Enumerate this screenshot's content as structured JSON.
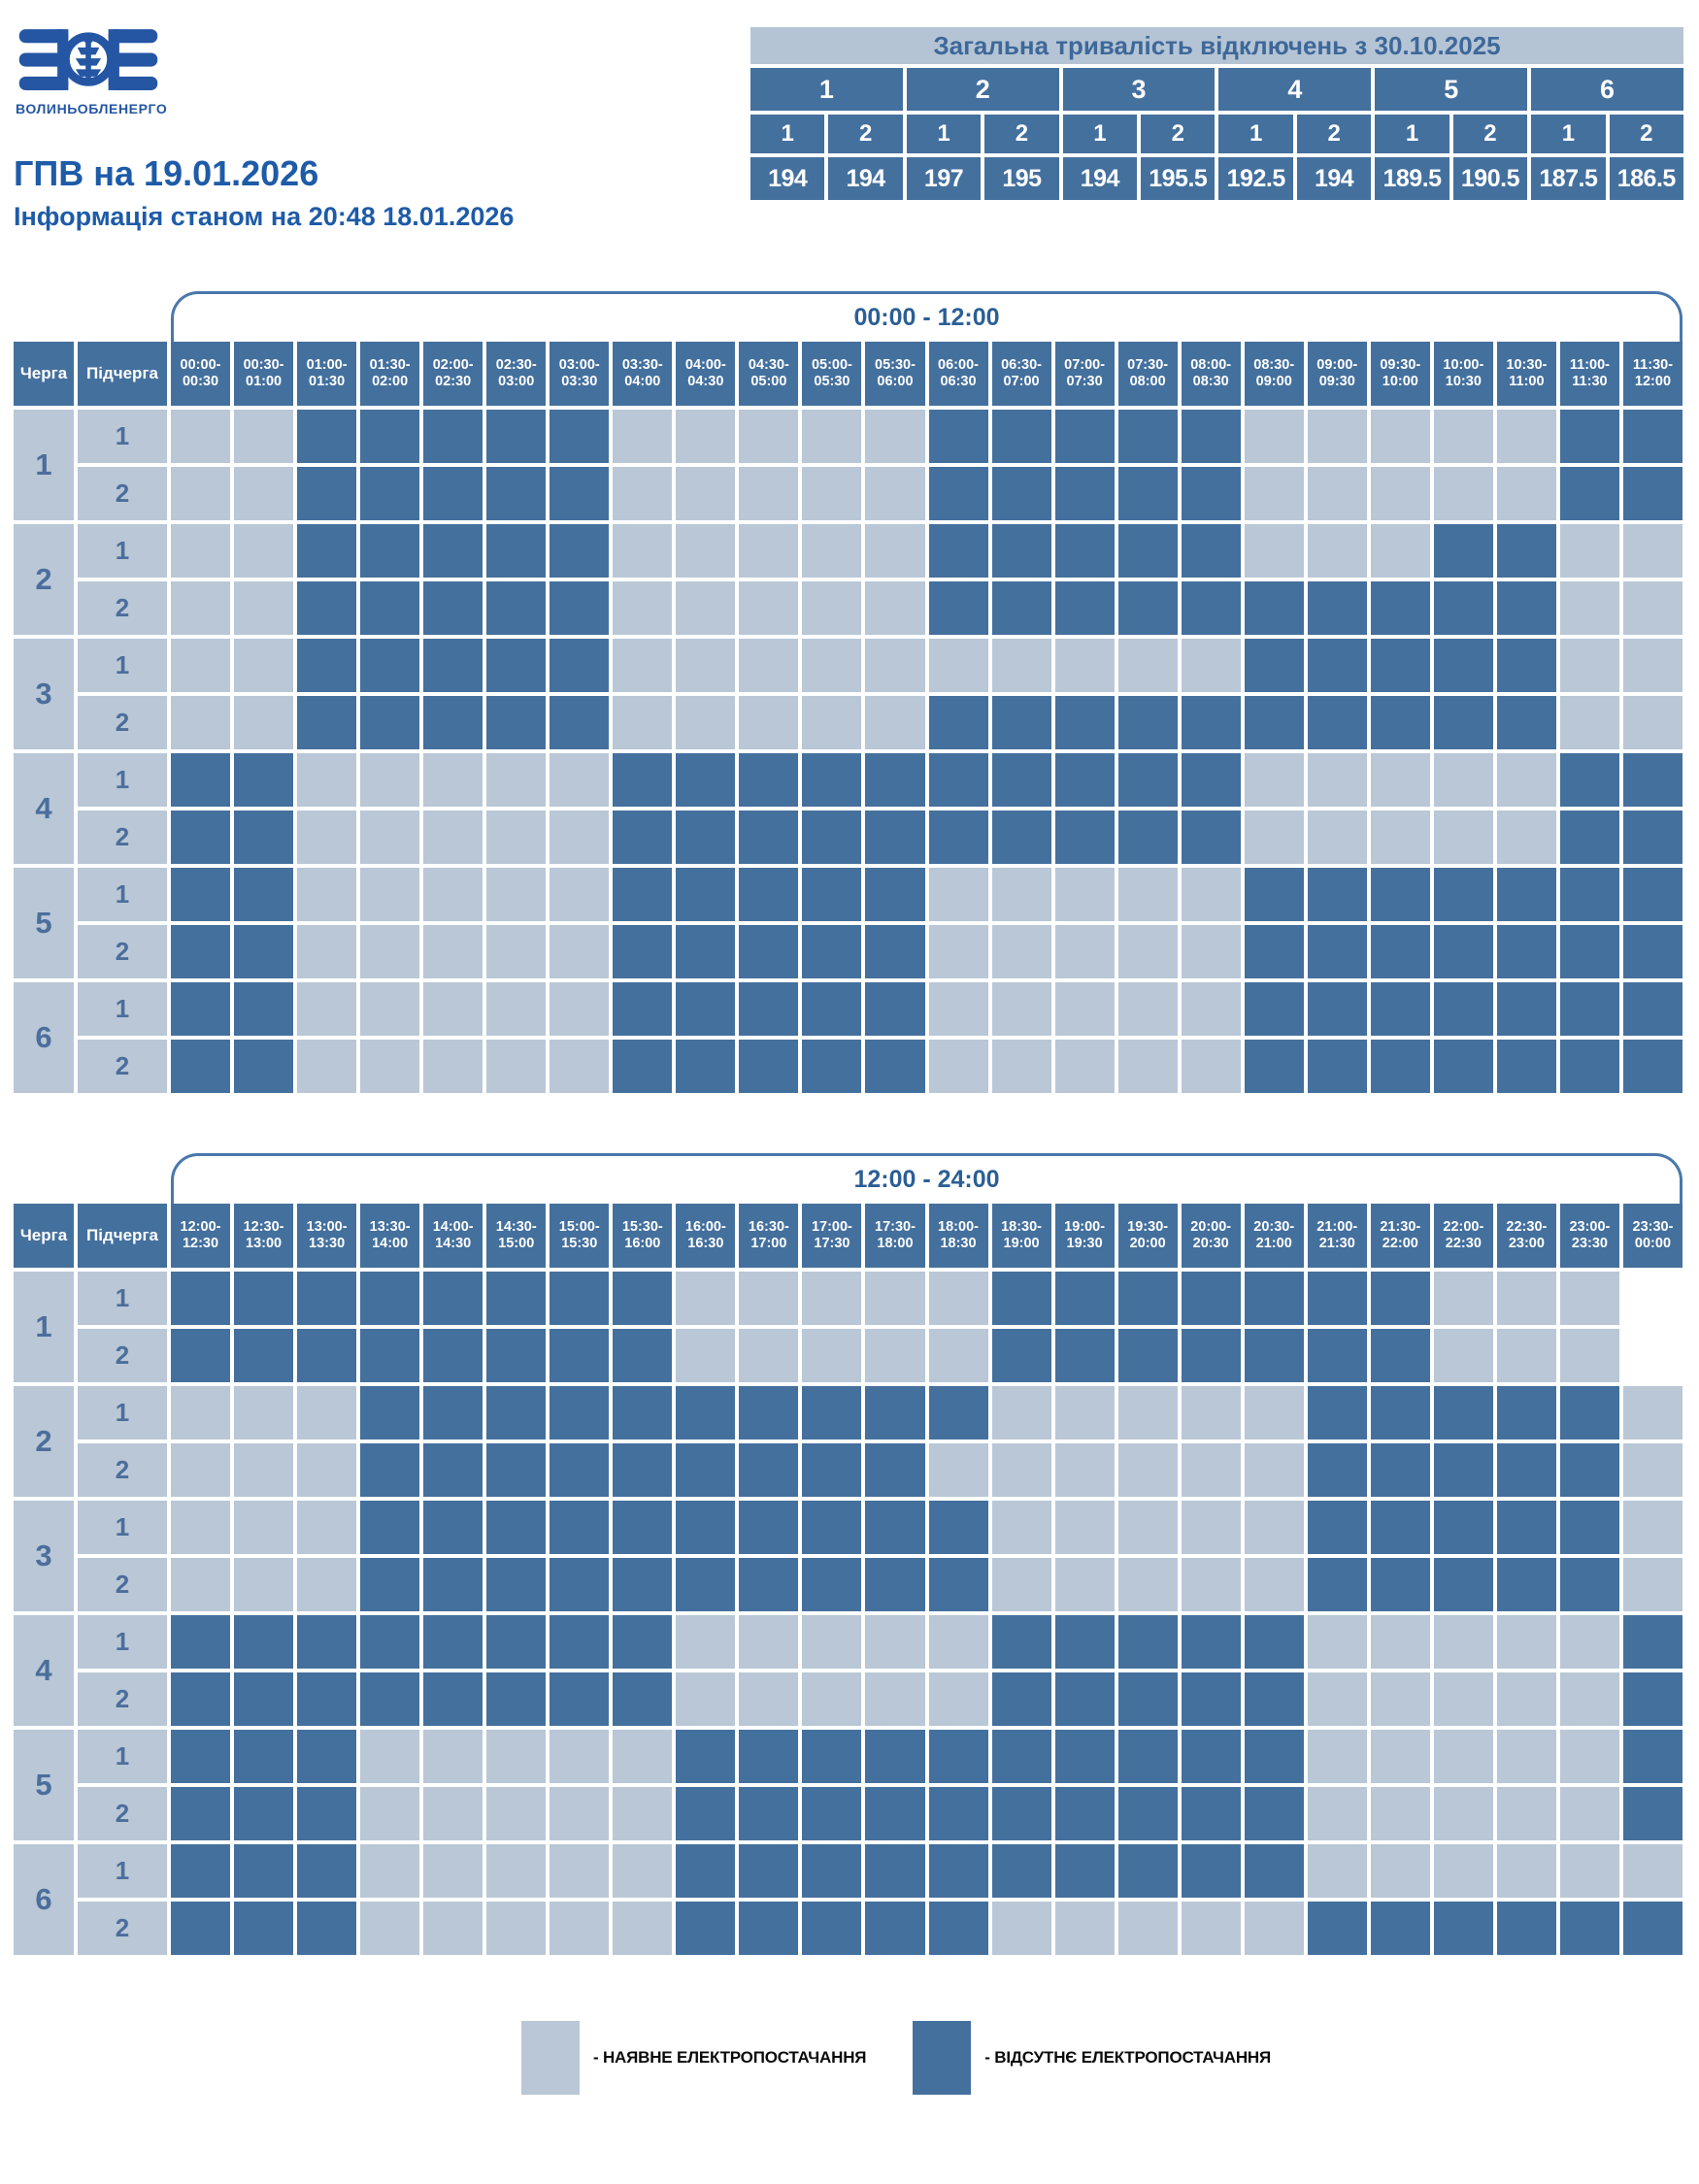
{
  "logo": {
    "caption": "ВОЛИНЬОБЛЕНЕРГО"
  },
  "header": {
    "title": "ГПВ на 19.01.2026",
    "subtitle": "Інформація станом на 20:48 18.01.2026"
  },
  "totals": {
    "title": "Загальна тривалість відключень з 30.10.2025",
    "queues": [
      "1",
      "2",
      "3",
      "4",
      "5",
      "6"
    ],
    "subqueues": [
      "1",
      "2",
      "1",
      "2",
      "1",
      "2",
      "1",
      "2",
      "1",
      "2",
      "1",
      "2"
    ],
    "values": [
      "194",
      "194",
      "197",
      "195",
      "194",
      "195.5",
      "192.5",
      "194",
      "189.5",
      "190.5",
      "187.5",
      "186.5"
    ]
  },
  "grid_labels": {
    "queue": "Черга",
    "subqueue": "Підчерга"
  },
  "cell_states": {
    "0": "power-on",
    "1": "power-off",
    "X": "empty"
  },
  "tables": [
    {
      "title": "00:00 - 12:00",
      "columns": [
        "00:00-00:30",
        "00:30-01:00",
        "01:00-01:30",
        "01:30-02:00",
        "02:00-02:30",
        "02:30-03:00",
        "03:00-03:30",
        "03:30-04:00",
        "04:00-04:30",
        "04:30-05:00",
        "05:00-05:30",
        "05:30-06:00",
        "06:00-06:30",
        "06:30-07:00",
        "07:00-07:30",
        "07:30-08:00",
        "08:00-08:30",
        "08:30-09:00",
        "09:00-09:30",
        "09:30-10:00",
        "10:00-10:30",
        "10:30-11:00",
        "11:00-11:30",
        "11:30-12:00"
      ],
      "queues": [
        "1",
        "2",
        "3",
        "4",
        "5",
        "6"
      ],
      "rows": [
        {
          "subqueue": "1",
          "cells": "001111100000111110000011"
        },
        {
          "subqueue": "2",
          "cells": "001111100000111110000011"
        },
        {
          "subqueue": "1",
          "cells": "001111100000111110001100"
        },
        {
          "subqueue": "2",
          "cells": "001111100000111111111100"
        },
        {
          "subqueue": "1",
          "cells": "001111100000000001111100"
        },
        {
          "subqueue": "2",
          "cells": "001111100000111111111100"
        },
        {
          "subqueue": "1",
          "cells": "110000011111111110000011"
        },
        {
          "subqueue": "2",
          "cells": "110000011111111110000011"
        },
        {
          "subqueue": "1",
          "cells": "110000011111000001111111"
        },
        {
          "subqueue": "2",
          "cells": "110000011111000001111111"
        },
        {
          "subqueue": "1",
          "cells": "110000011111000001111111"
        },
        {
          "subqueue": "2",
          "cells": "110000011111000001111111"
        }
      ]
    },
    {
      "title": "12:00 - 24:00",
      "columns": [
        "12:00-12:30",
        "12:30-13:00",
        "13:00-13:30",
        "13:30-14:00",
        "14:00-14:30",
        "14:30-15:00",
        "15:00-15:30",
        "15:30-16:00",
        "16:00-16:30",
        "16:30-17:00",
        "17:00-17:30",
        "17:30-18:00",
        "18:00-18:30",
        "18:30-19:00",
        "19:00-19:30",
        "19:30-20:00",
        "20:00-20:30",
        "20:30-21:00",
        "21:00-21:30",
        "21:30-22:00",
        "22:00-22:30",
        "22:30-23:00",
        "23:00-23:30",
        "23:30-00:00"
      ],
      "queues": [
        "1",
        "2",
        "3",
        "4",
        "5",
        "6"
      ],
      "rows": [
        {
          "subqueue": "1",
          "cells": "11111111000001111111000X"
        },
        {
          "subqueue": "2",
          "cells": "11111111000001111111000X"
        },
        {
          "subqueue": "1",
          "cells": "000111111111100000111110"
        },
        {
          "subqueue": "2",
          "cells": "000111111111000000111110"
        },
        {
          "subqueue": "1",
          "cells": "000111111111100000111110"
        },
        {
          "subqueue": "2",
          "cells": "000111111111100000111110"
        },
        {
          "subqueue": "1",
          "cells": "111111110000011111000001"
        },
        {
          "subqueue": "2",
          "cells": "111111110000011111000001"
        },
        {
          "subqueue": "1",
          "cells": "111000001111111111000001"
        },
        {
          "subqueue": "2",
          "cells": "111000001111111111000001"
        },
        {
          "subqueue": "1",
          "cells": "111000001111111111000000"
        },
        {
          "subqueue": "2",
          "cells": "111000001111100000111111"
        }
      ]
    }
  ],
  "legend": [
    {
      "state": "on",
      "label": "- НАЯВНЕ ЕЛЕКТРОПОСТАЧАННЯ"
    },
    {
      "state": "off",
      "label": "- ВІДСУТНЄ ЕЛЕКТРОПОСТАЧАННЯ"
    }
  ],
  "colors": {
    "power_on": "#B9C7D6",
    "power_off": "#44709E",
    "header_cell": "#44709E",
    "totals_title_bg": "#B5C4D4",
    "title_text": "#1E5BA8",
    "pill_border": "#4A77AC",
    "label_number_text": "#4B6E9C",
    "legend_text": "#0A0A0A"
  }
}
